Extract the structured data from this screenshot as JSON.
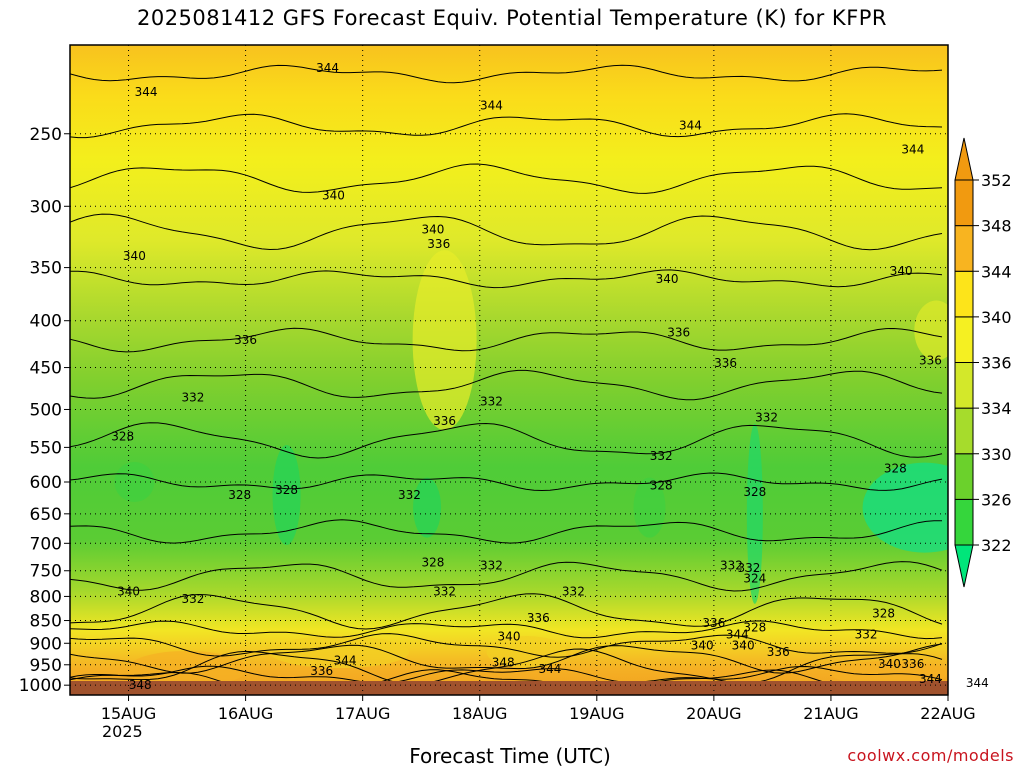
{
  "title": "2025081412 GFS Forecast Equiv. Potential Temperature (K) for KFPR",
  "credit": "coolwx.com/models",
  "chart_data": {
    "type": "heatmap",
    "title": "2025081412 GFS Forecast Equiv. Potential Temperature (K) for KFPR",
    "xlabel": "Forecast Time (UTC)",
    "ylabel": "",
    "y_axis": {
      "scale": "log",
      "direction": "pressure-decreasing-up",
      "range": [
        1025,
        200
      ]
    },
    "x_axis": {
      "range": [
        "2025-08-14 12Z",
        "2025-08-22 00Z"
      ]
    },
    "yticks": [
      "250",
      "300",
      "350",
      "400",
      "450",
      "500",
      "550",
      "600",
      "650",
      "700",
      "750",
      "800",
      "850",
      "900",
      "950",
      "1000"
    ],
    "xticks": [
      "15AUG",
      "16AUG",
      "17AUG",
      "18AUG",
      "19AUG",
      "20AUG",
      "21AUG",
      "22AUG"
    ],
    "xtick_year": "2025",
    "grid": true,
    "colorbar": {
      "levels": [
        "322",
        "326",
        "330",
        "334",
        "336",
        "340",
        "344",
        "348",
        "352"
      ],
      "colors": [
        "#00e67a",
        "#35d63c",
        "#6bd12c",
        "#a6dc2c",
        "#d3e82a",
        "#f5f022",
        "#fde41a",
        "#f8b420",
        "#f19a10"
      ]
    },
    "contour_labels": [
      {
        "text": "344",
        "day": 0.15,
        "p": 225
      },
      {
        "text": "344",
        "day": 1.7,
        "p": 212
      },
      {
        "text": "344",
        "day": 3.1,
        "p": 233
      },
      {
        "text": "344",
        "day": 4.8,
        "p": 245
      },
      {
        "text": "344",
        "day": 6.7,
        "p": 260
      },
      {
        "text": "340",
        "day": 0.05,
        "p": 340
      },
      {
        "text": "340",
        "day": 1.75,
        "p": 292
      },
      {
        "text": "340",
        "day": 2.6,
        "p": 318
      },
      {
        "text": "340",
        "day": 4.6,
        "p": 360
      },
      {
        "text": "340",
        "day": 6.6,
        "p": 353
      },
      {
        "text": "336",
        "day": 1.0,
        "p": 420
      },
      {
        "text": "336",
        "day": 2.65,
        "p": 330
      },
      {
        "text": "336",
        "day": 4.7,
        "p": 412
      },
      {
        "text": "336",
        "day": 5.1,
        "p": 445
      },
      {
        "text": "336",
        "day": 6.85,
        "p": 442
      },
      {
        "text": "336",
        "day": 2.7,
        "p": 515
      },
      {
        "text": "332",
        "day": 0.55,
        "p": 485
      },
      {
        "text": "332",
        "day": 2.4,
        "p": 620
      },
      {
        "text": "332",
        "day": 3.1,
        "p": 490
      },
      {
        "text": "332",
        "day": 4.55,
        "p": 562
      },
      {
        "text": "332",
        "day": 5.45,
        "p": 510
      },
      {
        "text": "332",
        "day": 0.55,
        "p": 805
      },
      {
        "text": "332",
        "day": 2.7,
        "p": 790
      },
      {
        "text": "332",
        "day": 3.1,
        "p": 740
      },
      {
        "text": "332",
        "day": 3.8,
        "p": 790
      },
      {
        "text": "332",
        "day": 5.3,
        "p": 745
      },
      {
        "text": "332",
        "day": 6.3,
        "p": 880
      },
      {
        "text": "328",
        "day": -0.05,
        "p": 535
      },
      {
        "text": "328",
        "day": 0.95,
        "p": 620
      },
      {
        "text": "328",
        "day": 1.35,
        "p": 612
      },
      {
        "text": "328",
        "day": 2.6,
        "p": 735
      },
      {
        "text": "328",
        "day": 4.55,
        "p": 605
      },
      {
        "text": "328",
        "day": 5.35,
        "p": 615
      },
      {
        "text": "328",
        "day": 6.55,
        "p": 580
      },
      {
        "text": "328",
        "day": 5.35,
        "p": 865
      },
      {
        "text": "328",
        "day": 6.45,
        "p": 835
      },
      {
        "text": "324",
        "day": 5.35,
        "p": 765
      },
      {
        "text": "332",
        "day": 5.15,
        "p": 740
      },
      {
        "text": "340",
        "day": 0.0,
        "p": 790
      },
      {
        "text": "344",
        "day": 1.85,
        "p": 940
      },
      {
        "text": "336",
        "day": 1.65,
        "p": 965
      },
      {
        "text": "336",
        "day": 3.5,
        "p": 845
      },
      {
        "text": "340",
        "day": 3.25,
        "p": 885
      },
      {
        "text": "348",
        "day": 3.2,
        "p": 945
      },
      {
        "text": "344",
        "day": 3.6,
        "p": 960
      },
      {
        "text": "340",
        "day": 4.9,
        "p": 905
      },
      {
        "text": "336",
        "day": 5.0,
        "p": 855
      },
      {
        "text": "344",
        "day": 5.2,
        "p": 880
      },
      {
        "text": "340",
        "day": 5.25,
        "p": 905
      },
      {
        "text": "336",
        "day": 5.55,
        "p": 920
      },
      {
        "text": "340",
        "day": 6.5,
        "p": 948
      },
      {
        "text": "336",
        "day": 6.7,
        "p": 948
      },
      {
        "text": "344",
        "day": 6.85,
        "p": 985
      },
      {
        "text": "344",
        "day": 7.25,
        "p": 995
      },
      {
        "text": "348",
        "day": 0.1,
        "p": 1000
      }
    ]
  }
}
